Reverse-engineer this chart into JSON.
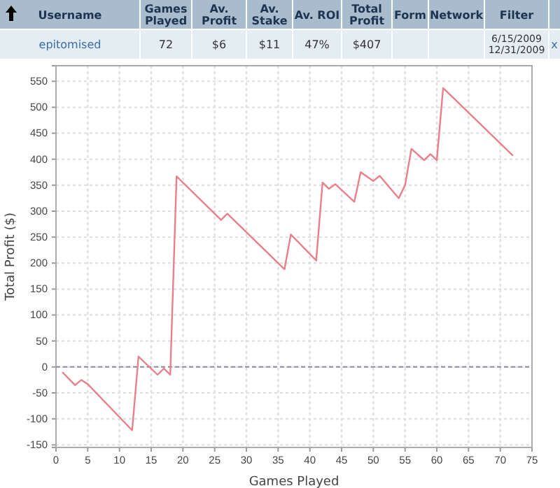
{
  "chart_data": [
    {
      "type": "other",
      "categories": [
        "Username",
        "Games Played",
        "Av. Profit",
        "Av. Stake",
        "Av. ROI",
        "Total Profit",
        "Form",
        "Network",
        "Filter",
        null
      ],
      "annotations": [
        "epitomised",
        "72",
        "$6",
        "$11",
        "47%",
        "$407",
        null,
        null,
        "6/15/2009 12/31/2009",
        "x"
      ]
    },
    {
      "type": "line",
      "xlabel": "Games Played",
      "ylabel": "Total Profit ($)",
      "x": [
        1,
        3,
        4,
        5,
        12,
        13,
        16,
        17,
        18,
        19,
        26,
        27,
        36,
        37,
        41,
        42,
        43,
        44,
        47,
        48,
        50,
        51,
        54,
        55,
        56,
        58,
        59,
        60,
        61,
        72
      ],
      "series": [
        {
          "color": "#e8808a",
          "values": [
            -10,
            -35,
            -25,
            -33,
            -122,
            20,
            -15,
            -3,
            -15,
            367,
            283,
            295,
            188,
            255,
            205,
            355,
            343,
            352,
            318,
            375,
            358,
            368,
            325,
            350,
            420,
            398,
            410,
            398,
            537,
            407
          ]
        }
      ],
      "xlim": [
        0,
        75
      ],
      "ylim": [
        -155,
        580
      ],
      "xticks": [
        0,
        5,
        10,
        15,
        20,
        25,
        30,
        35,
        40,
        45,
        50,
        55,
        60,
        65,
        70,
        75
      ],
      "yticks": [
        -150,
        -100,
        -50,
        0,
        50,
        100,
        150,
        200,
        250,
        300,
        350,
        400,
        450,
        500,
        550
      ],
      "grid": true,
      "marker": "none",
      "line_style": "solid",
      "ref_lines": [
        {
          "axis": "y",
          "value": 0,
          "line_style": "dashed",
          "color": "#8888aa"
        }
      ]
    }
  ]
}
